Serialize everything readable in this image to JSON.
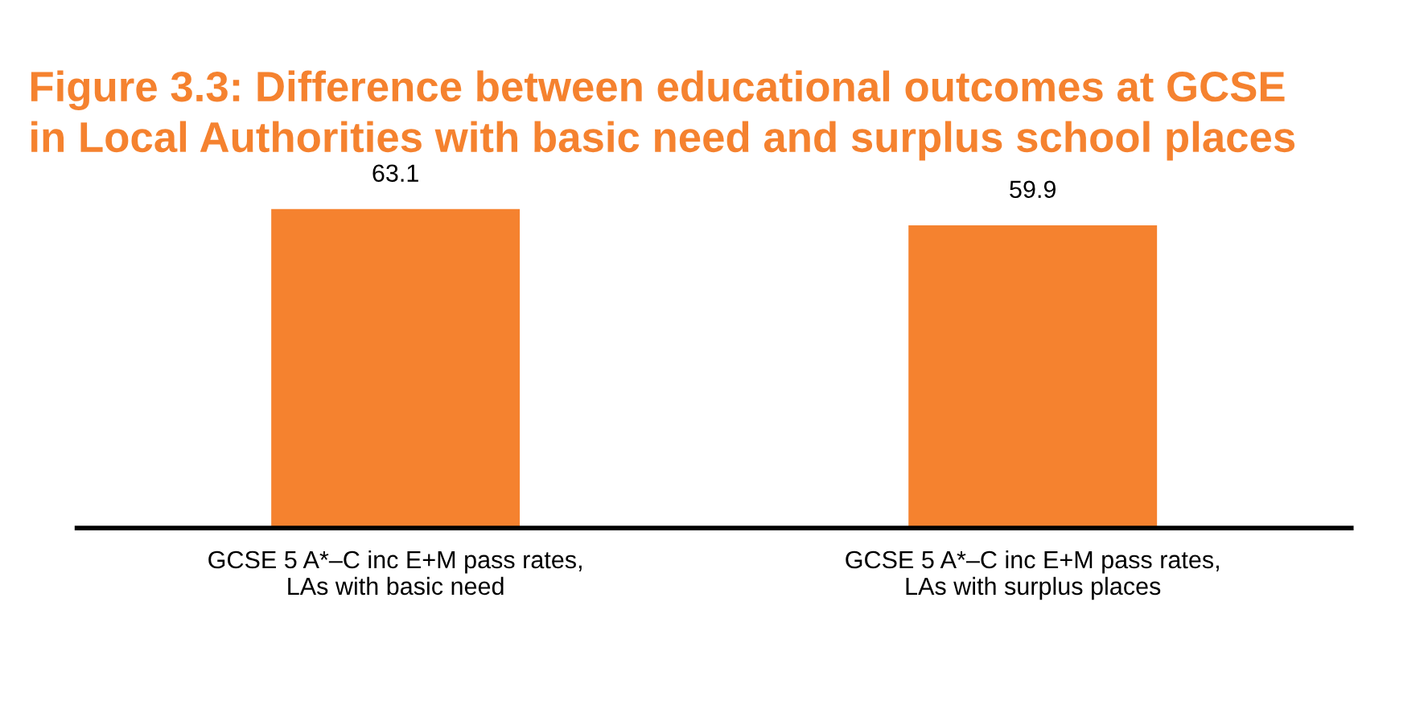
{
  "chart_data": {
    "type": "bar",
    "title": "Figure 3.3: Difference between educational outcomes at GCSE\nin Local Authorities with basic need and surplus school places",
    "categories": [
      "GCSE 5 A*–C inc E+M pass rates,\nLAs with basic need",
      "GCSE 5 A*–C inc E+M pass rates,\nLAs with surplus places"
    ],
    "values": [
      63.1,
      59.9
    ],
    "color": "#f5822f",
    "tick_labels": "x",
    "data_labels": true,
    "grid": false,
    "legend": false
  }
}
